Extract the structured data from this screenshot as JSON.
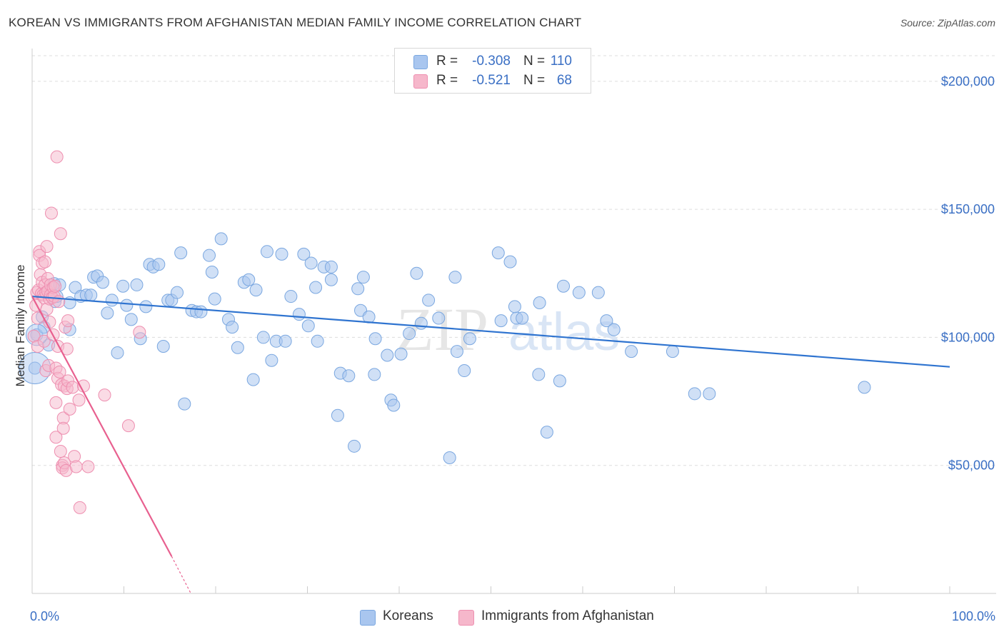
{
  "title": "KOREAN VS IMMIGRANTS FROM AFGHANISTAN MEDIAN FAMILY INCOME CORRELATION CHART",
  "source": "Source: ZipAtlas.com",
  "watermark": {
    "zip": "ZIP",
    "atlas": "atlas"
  },
  "legend_top": [
    {
      "r_label": "R =",
      "r_value": "-0.308",
      "n_label": "N =",
      "n_value": "110"
    },
    {
      "r_label": "R =",
      "r_value": "-0.521",
      "n_label": "N =",
      "n_value": "68"
    }
  ],
  "legend_bottom": [
    {
      "label": "Koreans"
    },
    {
      "label": "Immigrants from Afghanistan"
    }
  ],
  "colors": {
    "koreans_fill": "#a9c6ef",
    "koreans_stroke": "#7aa7e0",
    "koreans_line": "#2f74d0",
    "afghan_fill": "#f6b7cb",
    "afghan_stroke": "#ee8fb0",
    "afghan_line": "#e8608f",
    "grid": "#dddddd",
    "tick_label": "#3a6fc4"
  },
  "chart_data": {
    "type": "scatter",
    "title": "KOREAN VS IMMIGRANTS FROM AFGHANISTAN MEDIAN FAMILY INCOME CORRELATION CHART",
    "xlabel": "",
    "ylabel": "Median Family Income",
    "xlim": [
      0,
      100
    ],
    "ylim": [
      0,
      210000
    ],
    "x_tick_labels": [
      "0.0%",
      "100.0%"
    ],
    "y_ticks": [
      50000,
      100000,
      150000,
      200000
    ],
    "y_tick_labels": [
      "$50,000",
      "$100,000",
      "$150,000",
      "$200,000"
    ],
    "grid": "horizontal dashed",
    "legend": "top-center and bottom",
    "series": [
      {
        "name": "Koreans",
        "r": -0.308,
        "n": 110,
        "trend": {
          "x": [
            0,
            100
          ],
          "y": [
            116000,
            88500
          ]
        },
        "points": [
          [
            0.3,
            88000
          ],
          [
            0.5,
            101000
          ],
          [
            1.1,
            108000
          ],
          [
            1.3,
            104000
          ],
          [
            1.8,
            97000
          ],
          [
            2.4,
            121000
          ],
          [
            2.5,
            114000
          ],
          [
            2.7,
            116000
          ],
          [
            3.0,
            120500
          ],
          [
            4.1,
            113500
          ],
          [
            4.1,
            103000
          ],
          [
            4.7,
            119500
          ],
          [
            5.3,
            116000
          ],
          [
            5.9,
            116500
          ],
          [
            6.4,
            116500
          ],
          [
            6.7,
            123500
          ],
          [
            7.1,
            124000
          ],
          [
            7.7,
            121500
          ],
          [
            8.2,
            109500
          ],
          [
            8.7,
            114500
          ],
          [
            9.3,
            94000
          ],
          [
            9.9,
            120000
          ],
          [
            10.3,
            112500
          ],
          [
            10.8,
            107000
          ],
          [
            11.4,
            120500
          ],
          [
            11.8,
            99500
          ],
          [
            12.4,
            112000
          ],
          [
            12.8,
            128500
          ],
          [
            13.2,
            127500
          ],
          [
            13.8,
            128500
          ],
          [
            14.3,
            96500
          ],
          [
            14.8,
            114500
          ],
          [
            15.2,
            114500
          ],
          [
            15.8,
            117500
          ],
          [
            16.2,
            133000
          ],
          [
            16.6,
            74000
          ],
          [
            17.4,
            110500
          ],
          [
            17.9,
            110000
          ],
          [
            18.4,
            110000
          ],
          [
            19.3,
            132000
          ],
          [
            19.6,
            125500
          ],
          [
            19.9,
            115000
          ],
          [
            20.6,
            138500
          ],
          [
            21.4,
            107000
          ],
          [
            21.8,
            104000
          ],
          [
            22.4,
            96000
          ],
          [
            23.1,
            121500
          ],
          [
            23.6,
            122500
          ],
          [
            24.1,
            83500
          ],
          [
            24.4,
            118500
          ],
          [
            25.2,
            100000
          ],
          [
            25.6,
            133500
          ],
          [
            26.1,
            91000
          ],
          [
            26.6,
            98500
          ],
          [
            27.2,
            132500
          ],
          [
            27.6,
            98500
          ],
          [
            28.2,
            116000
          ],
          [
            29.1,
            109000
          ],
          [
            29.6,
            132500
          ],
          [
            30.1,
            104500
          ],
          [
            30.4,
            129000
          ],
          [
            30.9,
            119500
          ],
          [
            31.1,
            98500
          ],
          [
            31.8,
            127500
          ],
          [
            32.6,
            127500
          ],
          [
            32.6,
            122500
          ],
          [
            33.3,
            69500
          ],
          [
            33.6,
            86000
          ],
          [
            34.5,
            85000
          ],
          [
            35.1,
            57500
          ],
          [
            35.5,
            119000
          ],
          [
            35.8,
            110500
          ],
          [
            36.1,
            123500
          ],
          [
            36.7,
            108000
          ],
          [
            37.3,
            85500
          ],
          [
            37.4,
            99500
          ],
          [
            38.7,
            93000
          ],
          [
            39.1,
            75500
          ],
          [
            39.4,
            73500
          ],
          [
            40.2,
            93500
          ],
          [
            41.1,
            101500
          ],
          [
            41.9,
            125000
          ],
          [
            42.4,
            105500
          ],
          [
            43.2,
            114500
          ],
          [
            44.3,
            107500
          ],
          [
            45.5,
            53000
          ],
          [
            46.1,
            123500
          ],
          [
            46.3,
            94500
          ],
          [
            47.1,
            87000
          ],
          [
            47.7,
            99500
          ],
          [
            50.8,
            133000
          ],
          [
            51.1,
            106500
          ],
          [
            52.1,
            129500
          ],
          [
            52.8,
            107500
          ],
          [
            52.6,
            112000
          ],
          [
            53.4,
            107500
          ],
          [
            55.3,
            113500
          ],
          [
            55.2,
            85500
          ],
          [
            56.1,
            63000
          ],
          [
            57.5,
            83000
          ],
          [
            57.9,
            120000
          ],
          [
            59.6,
            117500
          ],
          [
            61.7,
            117500
          ],
          [
            62.6,
            106500
          ],
          [
            63.4,
            103000
          ],
          [
            65.3,
            94500
          ],
          [
            69.8,
            94500
          ],
          [
            72.2,
            78000
          ],
          [
            73.8,
            78000
          ],
          [
            90.7,
            80500
          ]
        ]
      },
      {
        "name": "Immigrants from Afghanistan",
        "r": -0.521,
        "n": 68,
        "trend": {
          "x": [
            0,
            15.2
          ],
          "y": [
            116000,
            14500
          ]
        },
        "trend_dashed": {
          "x": [
            15.2,
            17.3
          ],
          "y": [
            14500,
            0
          ]
        },
        "points": [
          [
            0.2,
            100500
          ],
          [
            0.4,
            112500
          ],
          [
            0.5,
            117500
          ],
          [
            0.6,
            107500
          ],
          [
            0.6,
            96500
          ],
          [
            0.7,
            118500
          ],
          [
            0.8,
            133500
          ],
          [
            0.8,
            132000
          ],
          [
            0.9,
            124500
          ],
          [
            1.0,
            117000
          ],
          [
            1.1,
            129000
          ],
          [
            1.1,
            121500
          ],
          [
            1.2,
            116500
          ],
          [
            1.3,
            115500
          ],
          [
            1.3,
            98500
          ],
          [
            1.4,
            129500
          ],
          [
            1.4,
            120500
          ],
          [
            1.5,
            117500
          ],
          [
            1.5,
            87000
          ],
          [
            1.6,
            135500
          ],
          [
            1.6,
            111000
          ],
          [
            1.7,
            123000
          ],
          [
            1.7,
            118000
          ],
          [
            1.8,
            89000
          ],
          [
            1.9,
            115000
          ],
          [
            1.9,
            106000
          ],
          [
            2.0,
            120500
          ],
          [
            2.0,
            116500
          ],
          [
            2.1,
            148500
          ],
          [
            2.2,
            115500
          ],
          [
            2.3,
            119500
          ],
          [
            2.3,
            101000
          ],
          [
            2.4,
            116000
          ],
          [
            2.5,
            120000
          ],
          [
            2.6,
            88000
          ],
          [
            2.6,
            74500
          ],
          [
            2.6,
            61000
          ],
          [
            2.7,
            170500
          ],
          [
            2.8,
            96500
          ],
          [
            2.8,
            84000
          ],
          [
            2.9,
            114000
          ],
          [
            3.0,
            86500
          ],
          [
            3.1,
            140500
          ],
          [
            3.1,
            55500
          ],
          [
            3.2,
            81500
          ],
          [
            3.3,
            50000
          ],
          [
            3.3,
            49000
          ],
          [
            3.4,
            68500
          ],
          [
            3.4,
            64500
          ],
          [
            3.5,
            81000
          ],
          [
            3.5,
            51000
          ],
          [
            3.6,
            104000
          ],
          [
            3.7,
            48000
          ],
          [
            3.8,
            95500
          ],
          [
            3.8,
            80000
          ],
          [
            3.9,
            83000
          ],
          [
            3.9,
            106500
          ],
          [
            4.1,
            72000
          ],
          [
            4.4,
            80500
          ],
          [
            4.6,
            53500
          ],
          [
            4.8,
            49500
          ],
          [
            5.1,
            75500
          ],
          [
            5.2,
            33500
          ],
          [
            5.6,
            81000
          ],
          [
            6.1,
            49500
          ],
          [
            7.9,
            77500
          ],
          [
            10.5,
            65500
          ],
          [
            11.7,
            102000
          ]
        ]
      }
    ]
  }
}
